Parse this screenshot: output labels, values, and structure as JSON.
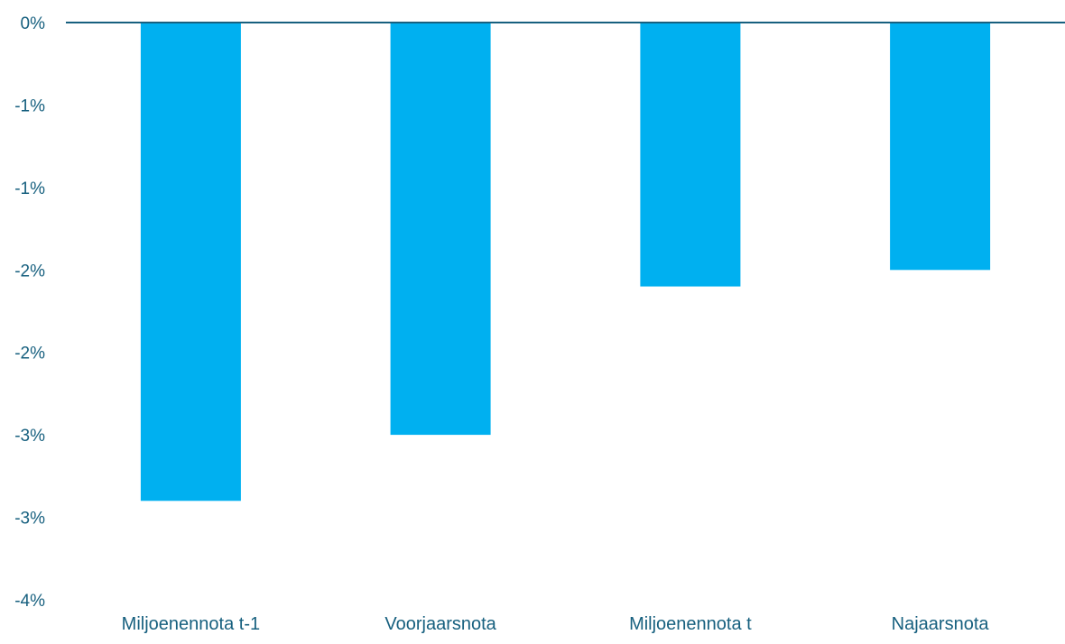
{
  "chart_data": {
    "type": "bar",
    "title": "",
    "xlabel": "",
    "ylabel": "",
    "categories": [
      "Miljoenennota t-1",
      "Voorjaarsnota",
      "Miljoenennota t",
      "Najaarsnota"
    ],
    "series": [
      {
        "values": [
          -2.9,
          -2.5,
          -1.6,
          -1.5
        ]
      }
    ],
    "ylim": [
      -3.5,
      0
    ],
    "yticks": [
      0,
      -0.5,
      -1.0,
      -1.5,
      -2.0,
      -2.5,
      -3.0,
      -3.5
    ],
    "ytick_labels": [
      "0%",
      "-1%",
      "-1%",
      "-2%",
      "-2%",
      "-3%",
      "-3%",
      "-4%"
    ],
    "grid": false,
    "legend": "none",
    "colors": {
      "bar": "#00b0f0",
      "axis_line": "#17607f",
      "text": "#17607f"
    }
  }
}
